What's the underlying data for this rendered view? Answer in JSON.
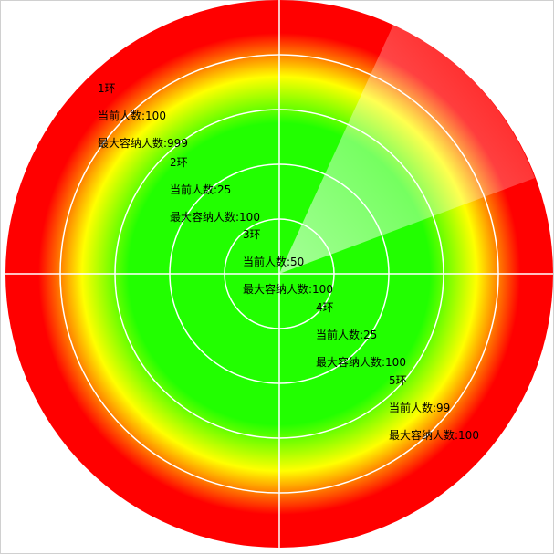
{
  "colors": {
    "outer": "#ff0000",
    "mid": "#ffff00",
    "inner": "#22ff00",
    "grid": "#ffffff",
    "sweep": "#ffffff",
    "frame": "#d0d0d0"
  },
  "zones": [
    {
      "title": "1环",
      "current_label": "当前人数:100",
      "max_label": "最大容纳人数:999"
    },
    {
      "title": "2环",
      "current_label": "当前人数:25",
      "max_label": "最大容纳人数:100"
    },
    {
      "title": "3环",
      "current_label": "当前人数:50",
      "max_label": "最大容纳人数:100"
    },
    {
      "title": "4环",
      "current_label": "当前人数:25",
      "max_label": "最大容纳人数:100"
    },
    {
      "title": "5环",
      "current_label": "当前人数:99",
      "max_label": "最大容纳人数:100"
    }
  ]
}
